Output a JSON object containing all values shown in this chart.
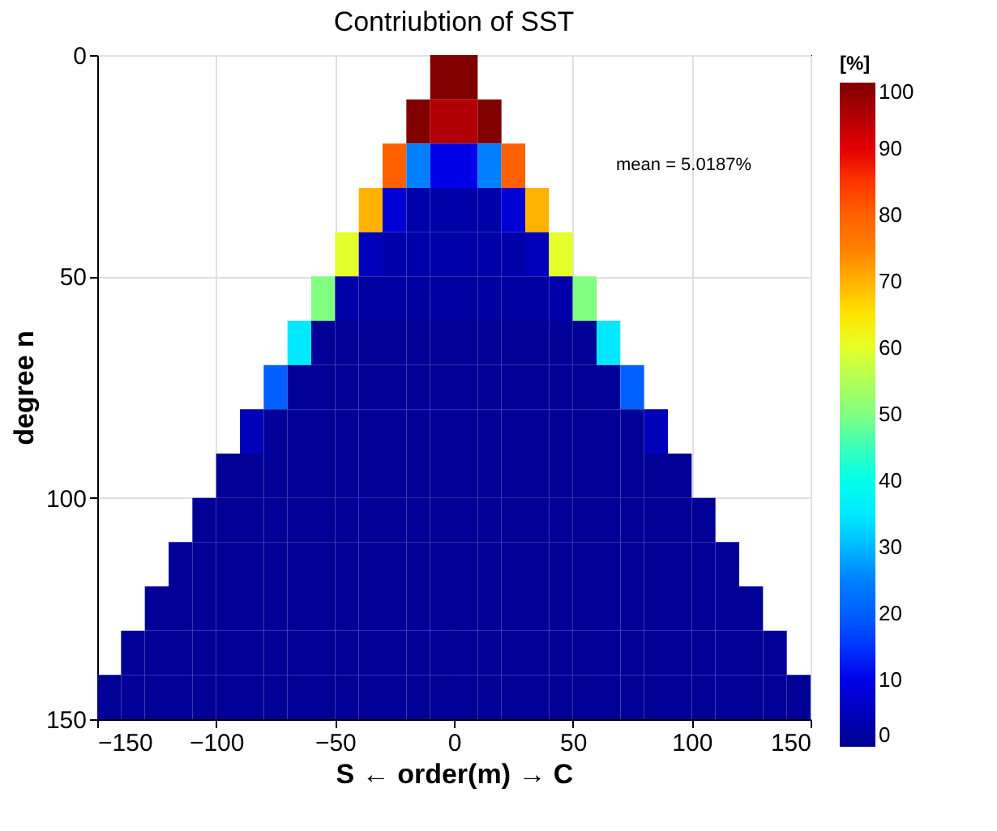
{
  "chart_data": {
    "type": "scatter",
    "title": "Contriubtion of SST",
    "xlabel": "S ← order(m) → C",
    "ylabel": "degree n",
    "clabel": "[%]",
    "marker": "square",
    "series": [
      {
        "x": [
          -5,
          5,
          -15,
          -5,
          5,
          15,
          -25,
          -15,
          -5,
          5,
          15,
          25,
          -35,
          -25,
          -15,
          -5,
          5,
          15,
          25,
          35,
          -45,
          -35,
          -25,
          -15,
          -5,
          5,
          15,
          25,
          35,
          45,
          -55,
          -45,
          -35,
          -25,
          -15,
          -5,
          5,
          15,
          25,
          35,
          45,
          55,
          -65,
          -55,
          -45,
          -35,
          -25,
          -15,
          -5,
          5,
          15,
          25,
          35,
          45,
          55,
          65,
          -75,
          -65,
          -55,
          -45,
          -35,
          -25,
          -15,
          -5,
          5,
          15,
          25,
          35,
          45,
          55,
          65,
          75,
          -85,
          -75,
          -65,
          -55,
          -45,
          -35,
          -25,
          -15,
          -5,
          5,
          15,
          25,
          35,
          45,
          55,
          65,
          75,
          85,
          -95,
          -85,
          -75,
          -65,
          -55,
          -45,
          -35,
          -25,
          -15,
          -5,
          5,
          15,
          25,
          35,
          45,
          55,
          65,
          75,
          85,
          95,
          -105,
          -95,
          -85,
          -75,
          -65,
          -55,
          -45,
          -35,
          -25,
          -15,
          -5,
          5,
          15,
          25,
          35,
          45,
          55,
          65,
          75,
          85,
          95,
          105,
          -115,
          -105,
          -95,
          -85,
          -75,
          -65,
          -55,
          -45,
          -35,
          -25,
          -15,
          -5,
          5,
          15,
          25,
          35,
          45,
          55,
          65,
          75,
          85,
          95,
          105,
          115,
          -125,
          -115,
          -105,
          -95,
          -85,
          -75,
          -65,
          -55,
          -45,
          -35,
          -25,
          -15,
          -5,
          5,
          15,
          25,
          35,
          45,
          55,
          65,
          75,
          85,
          95,
          105,
          115,
          125,
          -135,
          -125,
          -115,
          -105,
          -95,
          -85,
          -75,
          -65,
          -55,
          -45,
          -35,
          -25,
          -15,
          -5,
          5,
          15,
          25,
          35,
          45,
          55,
          65,
          75,
          85,
          95,
          105,
          115,
          125,
          135,
          -145,
          -135,
          -125,
          -115,
          -105,
          -95,
          -85,
          -75,
          -65,
          -55,
          -45,
          -35,
          -25,
          -15,
          -5,
          5,
          15,
          25,
          35,
          45,
          55,
          65,
          75,
          85,
          95,
          105,
          115,
          125,
          135,
          145
        ],
        "values": [
          5,
          5,
          15,
          15,
          15,
          15,
          25,
          25,
          25,
          25,
          25,
          25,
          35,
          35,
          35,
          35,
          35,
          35,
          35,
          35,
          45,
          45,
          45,
          45,
          45,
          45,
          45,
          45,
          45,
          45,
          55,
          55,
          55,
          55,
          55,
          55,
          55,
          55,
          55,
          55,
          55,
          55,
          65,
          65,
          65,
          65,
          65,
          65,
          65,
          65,
          65,
          65,
          65,
          65,
          65,
          65,
          75,
          75,
          75,
          75,
          75,
          75,
          75,
          75,
          75,
          75,
          75,
          75,
          75,
          75,
          75,
          75,
          85,
          85,
          85,
          85,
          85,
          85,
          85,
          85,
          85,
          85,
          85,
          85,
          85,
          85,
          85,
          85,
          85,
          85,
          95,
          95,
          95,
          95,
          95,
          95,
          95,
          95,
          95,
          95,
          95,
          95,
          95,
          95,
          95,
          95,
          95,
          95,
          95,
          95,
          105,
          105,
          105,
          105,
          105,
          105,
          105,
          105,
          105,
          105,
          105,
          105,
          105,
          105,
          105,
          105,
          105,
          105,
          105,
          105,
          105,
          105,
          115,
          115,
          115,
          115,
          115,
          115,
          115,
          115,
          115,
          115,
          115,
          115,
          115,
          115,
          115,
          115,
          115,
          115,
          115,
          115,
          115,
          115,
          115,
          115,
          125,
          125,
          125,
          125,
          125,
          125,
          125,
          125,
          125,
          125,
          125,
          125,
          125,
          125,
          125,
          125,
          125,
          125,
          125,
          125,
          125,
          125,
          125,
          125,
          125,
          125,
          135,
          135,
          135,
          135,
          135,
          135,
          135,
          135,
          135,
          135,
          135,
          135,
          135,
          135,
          135,
          135,
          135,
          135,
          135,
          135,
          135,
          135,
          135,
          135,
          135,
          135,
          135,
          135,
          145,
          145,
          145,
          145,
          145,
          145,
          145,
          145,
          145,
          145,
          145,
          145,
          145,
          145,
          145,
          145,
          145,
          145,
          145,
          145,
          145,
          145,
          145,
          145,
          145,
          145,
          145,
          145,
          145,
          145
        ],
        "cvalues": [
          100,
          100,
          100,
          95,
          95,
          100,
          80,
          25,
          10,
          10,
          25,
          80,
          70,
          8,
          3,
          3,
          3,
          3,
          8,
          70,
          60,
          5,
          3,
          3,
          3,
          3,
          3,
          3,
          5,
          60,
          50,
          3,
          2,
          2,
          2,
          2,
          2,
          2,
          2,
          2,
          3,
          50,
          35,
          1,
          1,
          1,
          1,
          1,
          1,
          1,
          1,
          1,
          1,
          1,
          1,
          35,
          20,
          1,
          1,
          1,
          1,
          1,
          1,
          1,
          1,
          1,
          1,
          1,
          1,
          1,
          1,
          20,
          5,
          1,
          1,
          1,
          1,
          1,
          1,
          1,
          1,
          1,
          1,
          1,
          1,
          1,
          1,
          1,
          1,
          5,
          1,
          1,
          1,
          1,
          1,
          1,
          1,
          1,
          1,
          1,
          1,
          1,
          1,
          1,
          1,
          1,
          1,
          1,
          1,
          1,
          1,
          1,
          1,
          1,
          1,
          1,
          1,
          1,
          1,
          1,
          1,
          1,
          1,
          1,
          1,
          1,
          1,
          1,
          1,
          1,
          1,
          1,
          1,
          1,
          1,
          1,
          1,
          1,
          1,
          1,
          1,
          1,
          1,
          1,
          1,
          1,
          1,
          1,
          1,
          1,
          1,
          1,
          1,
          1,
          1,
          1,
          1,
          1,
          1,
          1,
          1,
          1,
          1,
          1,
          1,
          1,
          1,
          1,
          1,
          1,
          1,
          1,
          1,
          1,
          1,
          1,
          1,
          1,
          1,
          1,
          1,
          1,
          1,
          1,
          1,
          1,
          1,
          1,
          1,
          1,
          1,
          1,
          1,
          1,
          1,
          1,
          1,
          1,
          1,
          1,
          1,
          1,
          1,
          1,
          1,
          1,
          1,
          1,
          1,
          1,
          1,
          1,
          1,
          1,
          1,
          1,
          1,
          1,
          1,
          1,
          1,
          1,
          1,
          1,
          1,
          1,
          1,
          1,
          1,
          1,
          1,
          1,
          1,
          1,
          1,
          1,
          1,
          1,
          1,
          1
        ]
      }
    ],
    "xlim": [
      -150,
      150
    ],
    "xticks": [
      -150,
      -100,
      -50,
      0,
      50,
      100,
      150
    ],
    "ylim": [
      150,
      0
    ],
    "yticks": [
      0,
      50,
      100,
      150
    ],
    "clim": [
      0,
      100
    ],
    "cticks": [
      0,
      10,
      20,
      30,
      40,
      50,
      60,
      70,
      80,
      90,
      100
    ],
    "grid": true,
    "annotations": [
      "mean = 5.0187%"
    ]
  }
}
